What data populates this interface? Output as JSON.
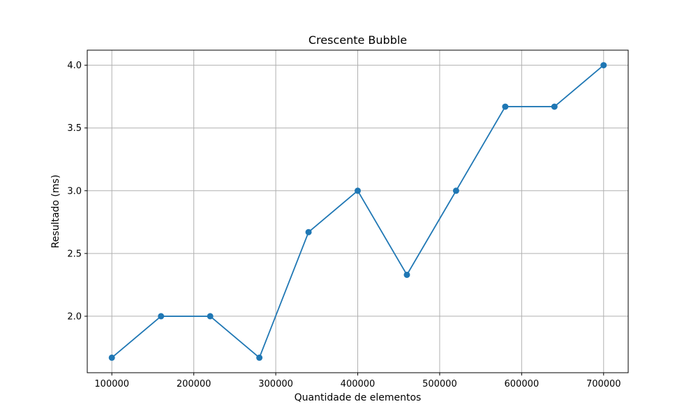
{
  "chart_data": {
    "type": "line",
    "title": "Crescente Bubble",
    "xlabel": "Quantidade de elementos",
    "ylabel": "Resultado (ms)",
    "x": [
      100000,
      160000,
      220000,
      280000,
      340000,
      400000,
      460000,
      520000,
      580000,
      640000,
      700000
    ],
    "series": [
      {
        "values": [
          1.67,
          2.0,
          2.0,
          1.67,
          2.67,
          3.0,
          2.33,
          3.0,
          3.67,
          3.67,
          4.0
        ],
        "color": "#1f77b4",
        "marker": "circle"
      }
    ],
    "xlim": [
      70000,
      730000
    ],
    "ylim": [
      1.55,
      4.12
    ],
    "xticks": [
      100000,
      200000,
      300000,
      400000,
      500000,
      600000,
      700000
    ],
    "xtick_labels": [
      "100000",
      "200000",
      "300000",
      "400000",
      "500000",
      "600000",
      "700000"
    ],
    "yticks": [
      2.0,
      2.5,
      3.0,
      3.5,
      4.0
    ],
    "ytick_labels": [
      "2.0",
      "2.5",
      "3.0",
      "3.5",
      "4.0"
    ],
    "grid": true,
    "legend": false
  }
}
